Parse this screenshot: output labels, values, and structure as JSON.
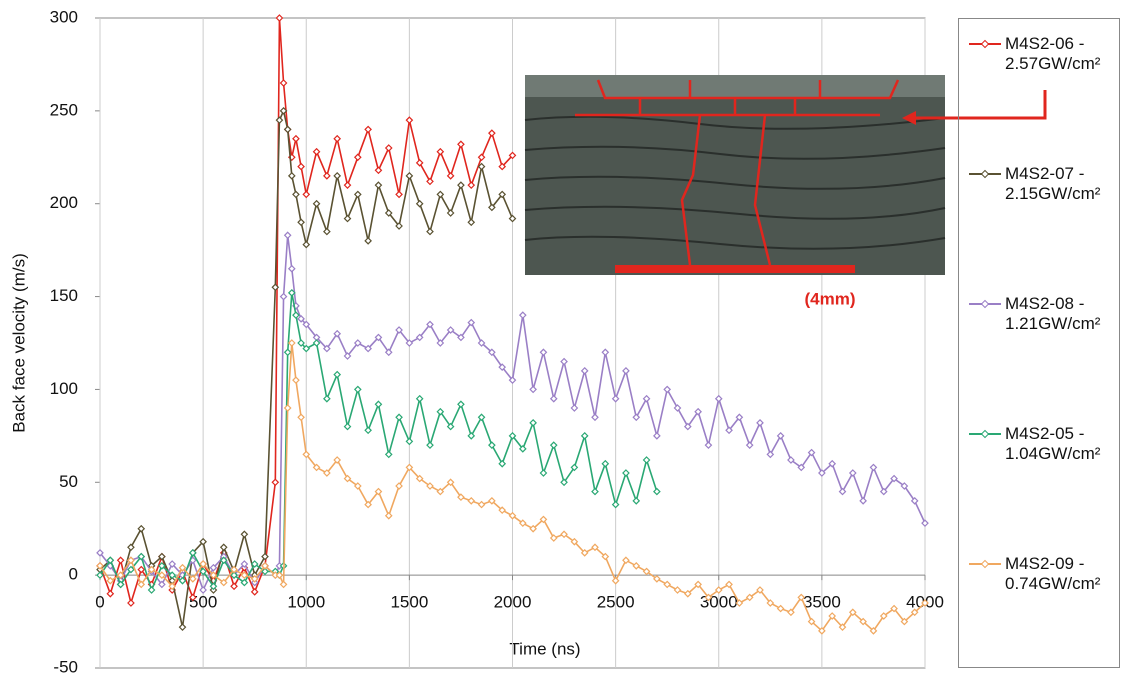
{
  "chart_data": {
    "type": "line",
    "x_label": "Time (ns)",
    "y_label": "Back face velocity (m/s)",
    "annotation": "(4mm)",
    "x": [
      0,
      50,
      100,
      150,
      200,
      250,
      300,
      350,
      400,
      450,
      500,
      550,
      600,
      650,
      700,
      750,
      800,
      850,
      870,
      890,
      910,
      930,
      950,
      975,
      1000,
      1050,
      1100,
      1150,
      1200,
      1250,
      1300,
      1350,
      1400,
      1450,
      1500,
      1550,
      1600,
      1650,
      1700,
      1750,
      1800,
      1850,
      1900,
      1950,
      2000,
      2050,
      2100,
      2150,
      2200,
      2250,
      2300,
      2350,
      2400,
      2450,
      2500,
      2550,
      2600,
      2650,
      2700,
      2750,
      2800,
      2850,
      2900,
      2950,
      3000,
      3050,
      3100,
      3150,
      3200,
      3250,
      3300,
      3350,
      3400,
      3450,
      3500,
      3550,
      3600,
      3650,
      3700,
      3750,
      3800,
      3850,
      3900,
      3950,
      4000
    ],
    "series": [
      {
        "name": "M4S2-06 - 2.57GW/cm²",
        "color": "#e0261e",
        "values": [
          5,
          -10,
          8,
          -15,
          3,
          -5,
          10,
          -8,
          2,
          -12,
          6,
          -3,
          12,
          -6,
          4,
          -9,
          5,
          50,
          300,
          265,
          240,
          225,
          235,
          220,
          205,
          228,
          215,
          235,
          210,
          225,
          240,
          218,
          230,
          205,
          245,
          222,
          212,
          228,
          215,
          232,
          210,
          225,
          238,
          220,
          226,
          null,
          null,
          null,
          null,
          null,
          null,
          null,
          null,
          null,
          null,
          null,
          null,
          null,
          null,
          null,
          null,
          null,
          null,
          null,
          null,
          null,
          null,
          null,
          null,
          null,
          null,
          null,
          null,
          null,
          null,
          null,
          null,
          null,
          null,
          null,
          null,
          null,
          null,
          null,
          null
        ]
      },
      {
        "name": "M4S2-07 - 2.15GW/cm²",
        "color": "#5a5232",
        "values": [
          3,
          8,
          -5,
          15,
          25,
          5,
          10,
          -3,
          -28,
          12,
          18,
          -8,
          15,
          2,
          22,
          0,
          10,
          155,
          245,
          250,
          240,
          215,
          205,
          190,
          178,
          200,
          185,
          215,
          192,
          205,
          180,
          210,
          195,
          188,
          215,
          200,
          185,
          205,
          195,
          210,
          190,
          220,
          198,
          205,
          192,
          null,
          null,
          null,
          null,
          null,
          null,
          null,
          null,
          null,
          null,
          null,
          null,
          null,
          null,
          null,
          null,
          null,
          null,
          null,
          null,
          null,
          null,
          null,
          null,
          null,
          null,
          null,
          null,
          null,
          null,
          null,
          null,
          null,
          null,
          null,
          null,
          null,
          null,
          null,
          null
        ]
      },
      {
        "name": "M4S2-08 - 1.21GW/cm²",
        "color": "#9a7fc6",
        "values": [
          12,
          5,
          -3,
          8,
          10,
          2,
          -5,
          6,
          0,
          8,
          -8,
          4,
          10,
          0,
          6,
          -4,
          5,
          0,
          5,
          150,
          183,
          165,
          145,
          138,
          135,
          128,
          122,
          130,
          118,
          125,
          122,
          128,
          120,
          132,
          125,
          128,
          135,
          125,
          132,
          128,
          136,
          125,
          120,
          112,
          105,
          140,
          100,
          120,
          95,
          115,
          90,
          110,
          85,
          120,
          95,
          110,
          85,
          95,
          75,
          100,
          90,
          80,
          88,
          70,
          95,
          78,
          85,
          70,
          82,
          65,
          75,
          62,
          58,
          66,
          55,
          60,
          45,
          55,
          40,
          58,
          45,
          52,
          48,
          40,
          28
        ]
      },
      {
        "name": "M4S2-05 - 1.04GW/cm²",
        "color": "#2aa874",
        "values": [
          0,
          8,
          -5,
          3,
          10,
          -8,
          5,
          0,
          -3,
          12,
          2,
          -6,
          8,
          0,
          -4,
          6,
          2,
          2,
          0,
          5,
          120,
          152,
          140,
          125,
          122,
          125,
          95,
          108,
          80,
          100,
          78,
          92,
          65,
          85,
          72,
          95,
          70,
          88,
          80,
          92,
          75,
          85,
          70,
          60,
          75,
          68,
          82,
          55,
          70,
          50,
          58,
          75,
          45,
          60,
          38,
          55,
          40,
          62,
          45,
          null,
          null,
          null,
          null,
          null,
          null,
          null,
          null,
          null,
          null,
          null,
          null,
          null,
          null,
          null,
          null,
          null,
          null,
          null,
          null,
          null,
          null,
          null,
          null,
          null,
          null
        ]
      },
      {
        "name": "M4S2-09 - 0.74GW/cm²",
        "color": "#f0a860",
        "values": [
          5,
          -3,
          0,
          8,
          -5,
          3,
          0,
          -6,
          4,
          -2,
          6,
          0,
          -4,
          3,
          0,
          -2,
          5,
          0,
          0,
          -5,
          90,
          125,
          105,
          85,
          65,
          58,
          55,
          62,
          52,
          48,
          38,
          45,
          32,
          48,
          58,
          52,
          48,
          45,
          50,
          42,
          40,
          38,
          40,
          35,
          32,
          28,
          25,
          30,
          20,
          22,
          18,
          12,
          15,
          10,
          -3,
          8,
          5,
          2,
          -2,
          -5,
          -8,
          -10,
          -5,
          -12,
          -8,
          -5,
          -15,
          -12,
          -8,
          -15,
          -18,
          -20,
          -12,
          -25,
          -30,
          -22,
          -28,
          -20,
          -25,
          -30,
          -22,
          -18,
          -25,
          -20,
          -15
        ]
      }
    ],
    "xlim": [
      0,
      4000
    ],
    "xticks": [
      0,
      500,
      1000,
      1500,
      2000,
      2500,
      3000,
      3500,
      4000
    ],
    "ylim": [
      -50,
      300
    ],
    "yticks": [
      -50,
      0,
      50,
      100,
      150,
      200,
      250,
      300
    ],
    "grid": "x",
    "legend": "right"
  }
}
